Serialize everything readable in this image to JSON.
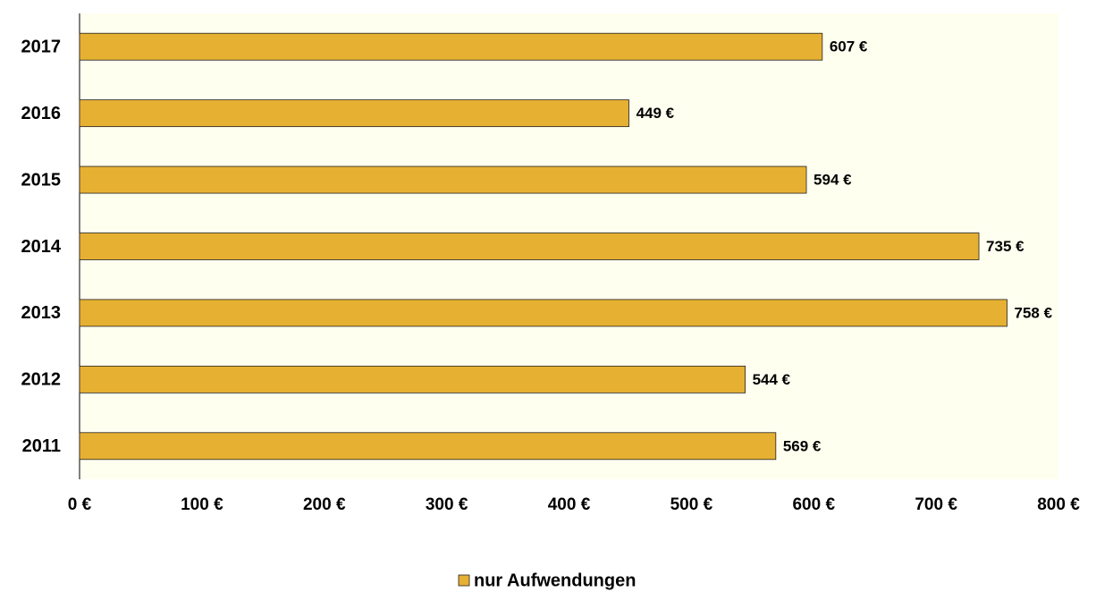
{
  "chart_data": {
    "type": "hbar",
    "categories": [
      "2017",
      "2016",
      "2015",
      "2014",
      "2013",
      "2012",
      "2011"
    ],
    "series": [
      {
        "name": "nur Aufwendungen",
        "color": "#e6b032",
        "values": [
          607,
          449,
          594,
          735,
          758,
          544,
          569
        ],
        "value_labels": [
          "607 €",
          "449 €",
          "594 €",
          "735 €",
          "758 €",
          "544 €",
          "569 €"
        ]
      }
    ],
    "xlim": [
      0,
      800
    ],
    "xticks": [
      {
        "value": 0,
        "label": "0 €"
      },
      {
        "value": 100,
        "label": "100 €"
      },
      {
        "value": 200,
        "label": "200 €"
      },
      {
        "value": 300,
        "label": "300 €"
      },
      {
        "value": 400,
        "label": "400 €"
      },
      {
        "value": 500,
        "label": "500 €"
      },
      {
        "value": 600,
        "label": "600 €"
      },
      {
        "value": 700,
        "label": "700 €"
      },
      {
        "value": 800,
        "label": "800 €"
      }
    ],
    "legend": "bottom"
  }
}
